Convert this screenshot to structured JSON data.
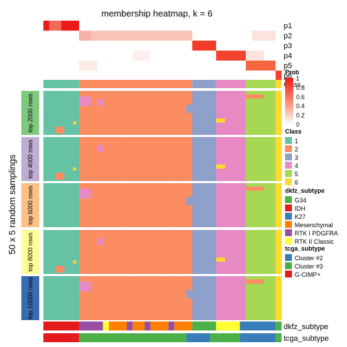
{
  "chart_data": {
    "type": "heatmap",
    "title": "membership heatmap, k = 6",
    "ylabel": "50 x 5 random samplings",
    "membership_rows": [
      "p1",
      "p2",
      "p3",
      "p4",
      "p5",
      "p6"
    ],
    "class_row_label": "Class",
    "row_groups": [
      "top 2000 rows",
      "top 4000 rows",
      "top 6000 rows",
      "top 8000 rows",
      "top 10000 rows"
    ],
    "bottom_annotations": [
      "dkfz_subtype",
      "tcga_subtype"
    ],
    "prob_legend": {
      "title": "Prob",
      "ticks": [
        "1",
        "0.8",
        "0.6",
        "0.4",
        "0.2",
        "0"
      ]
    },
    "class_legend": {
      "title": "Class",
      "items": [
        {
          "label": "1",
          "color": "#66C2A5"
        },
        {
          "label": "2",
          "color": "#FC8D62"
        },
        {
          "label": "3",
          "color": "#8DA0CB"
        },
        {
          "label": "4",
          "color": "#E78AC3"
        },
        {
          "label": "5",
          "color": "#A6D854"
        },
        {
          "label": "6",
          "color": "#FFD92F"
        }
      ]
    },
    "dkfz_legend": {
      "title": "dkfz_subtype",
      "items": [
        {
          "label": "G34",
          "color": "#4DAF4A"
        },
        {
          "label": "IDH",
          "color": "#E41A1C"
        },
        {
          "label": "K27",
          "color": "#377EB8"
        },
        {
          "label": "Mesenchymal",
          "color": "#FF7F00"
        },
        {
          "label": "RTK I PDGFRA",
          "color": "#984EA3"
        },
        {
          "label": "RTK II Classic",
          "color": "#FFFF33"
        }
      ]
    },
    "tcga_legend": {
      "title": "tcga_subtype",
      "items": [
        {
          "label": "Cluster #2",
          "color": "#377EB8"
        },
        {
          "label": "Cluster #3",
          "color": "#4DAF4A"
        },
        {
          "label": "G-CIMP+",
          "color": "#E41A1C"
        }
      ]
    },
    "class_sequence": [
      {
        "class": "1",
        "n": 6
      },
      {
        "class": "2",
        "n": 19
      },
      {
        "class": "3",
        "n": 4
      },
      {
        "class": "4",
        "n": 5
      },
      {
        "class": "5",
        "n": 5
      },
      {
        "class": "6",
        "n": 1
      }
    ],
    "dkfz_sequence": [
      {
        "subtype": "IDH",
        "n": 6
      },
      {
        "subtype": "RTK I PDGFRA",
        "n": 4
      },
      {
        "subtype": "RTK II Classic",
        "n": 1
      },
      {
        "subtype": "Mesenchymal",
        "n": 3
      },
      {
        "subtype": "RTK I PDGFRA",
        "n": 1
      },
      {
        "subtype": "Mesenchymal",
        "n": 2
      },
      {
        "subtype": "RTK I PDGFRA",
        "n": 1
      },
      {
        "subtype": "Mesenchymal",
        "n": 3
      },
      {
        "subtype": "RTK I PDGFRA",
        "n": 1
      },
      {
        "subtype": "Mesenchymal",
        "n": 3
      },
      {
        "subtype": "G34",
        "n": 4
      },
      {
        "subtype": "RTK II Classic",
        "n": 4
      },
      {
        "subtype": "K27",
        "n": 6
      },
      {
        "subtype": "G34",
        "n": 1
      }
    ],
    "tcga_sequence": [
      {
        "subtype": "G-CIMP+",
        "n": 6
      },
      {
        "subtype": "Cluster #3",
        "n": 18
      },
      {
        "subtype": "Cluster #2",
        "n": 4
      },
      {
        "subtype": "Cluster #3",
        "n": 5
      },
      {
        "subtype": "Cluster #2",
        "n": 6
      },
      {
        "subtype": "Cluster #3",
        "n": 1
      }
    ]
  }
}
